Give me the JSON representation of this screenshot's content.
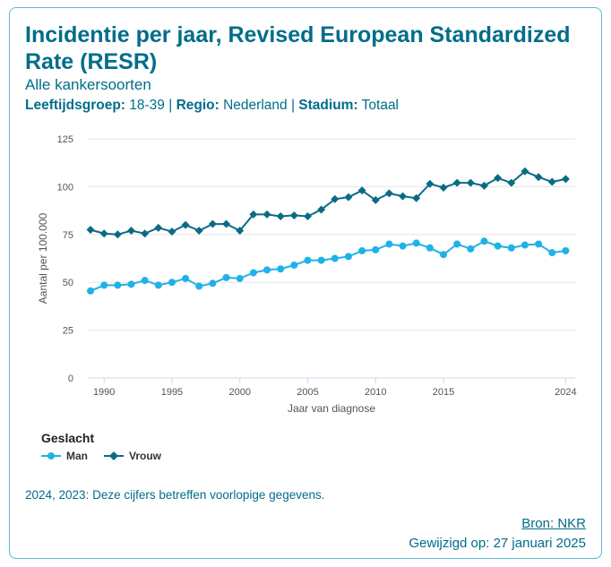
{
  "header": {
    "title": "Incidentie per jaar, Revised European Standardized Rate (RESR)",
    "subtitle": "Alle kankersoorten",
    "filters": [
      {
        "label": "Leeftijdsgroep:",
        "value": "18-39"
      },
      {
        "label": "Regio:",
        "value": "Nederland"
      },
      {
        "label": "Stadium:",
        "value": "Totaal"
      }
    ],
    "separator": "|"
  },
  "legend": {
    "title": "Geslacht",
    "items": [
      "Man",
      "Vrouw"
    ]
  },
  "footer": {
    "note": "2024, 2023: Deze cijfers betreffen voorlopige gegevens.",
    "source": "Bron: NKR",
    "modified": "Gewijzigd op: 27 januari 2025"
  },
  "colors": {
    "accent": "#006d8a",
    "man": "#1fb2e6",
    "vrouw": "#0b6b86"
  },
  "chart_data": {
    "type": "line",
    "xlabel": "Jaar van diagnose",
    "ylabel": "Aantal per 100.000",
    "ylim": [
      0,
      125
    ],
    "yticks": [
      0,
      25,
      50,
      75,
      100,
      125
    ],
    "xticks": [
      1990,
      1995,
      2000,
      2005,
      2010,
      2015,
      2024
    ],
    "x": [
      1989,
      1990,
      1991,
      1992,
      1993,
      1994,
      1995,
      1996,
      1997,
      1998,
      1999,
      2000,
      2001,
      2002,
      2003,
      2004,
      2005,
      2006,
      2007,
      2008,
      2009,
      2010,
      2011,
      2012,
      2013,
      2014,
      2015,
      2016,
      2017,
      2018,
      2019,
      2020,
      2021,
      2022,
      2023,
      2024
    ],
    "series": [
      {
        "name": "Man",
        "marker": "circle",
        "values": [
          45.5,
          48.5,
          48.5,
          49,
          51,
          48.5,
          50,
          52,
          48,
          49.5,
          52.5,
          52,
          55,
          56.5,
          57,
          59,
          61.5,
          61.5,
          62.5,
          63.5,
          66.5,
          67,
          70,
          69,
          70.5,
          68,
          64.5,
          70,
          67.5,
          71.5,
          69,
          68,
          69.5,
          70,
          65.5,
          66.5
        ]
      },
      {
        "name": "Vrouw",
        "marker": "diamond",
        "values": [
          77.5,
          75.5,
          75,
          77,
          75.5,
          78.5,
          76.5,
          80,
          77,
          80.5,
          80.5,
          77,
          85.5,
          85.5,
          84.5,
          85,
          84.5,
          88,
          93.5,
          94.5,
          98,
          93,
          96.5,
          95,
          94,
          101.5,
          99.5,
          102,
          102,
          100.5,
          104.5,
          102,
          108,
          105,
          102.5,
          104
        ]
      }
    ],
    "grid": true,
    "legend_position": "bottom-left"
  }
}
